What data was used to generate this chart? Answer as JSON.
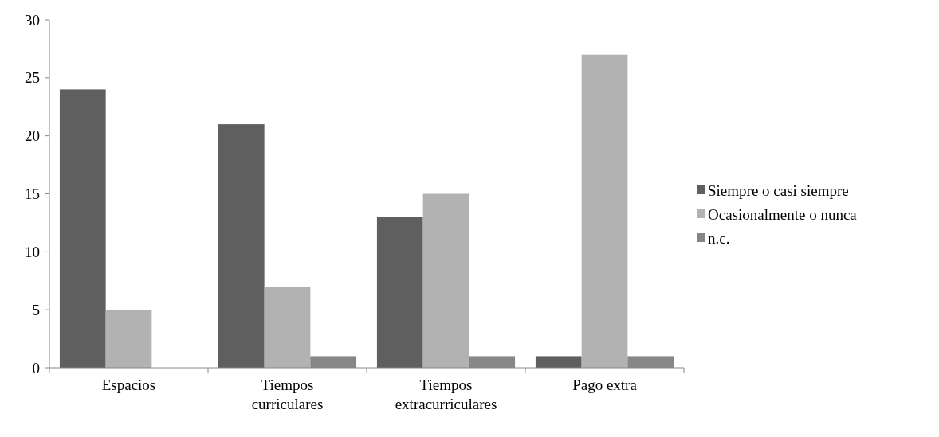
{
  "chart_data": {
    "type": "bar",
    "categories": [
      "Espacios",
      "Tiempos curriculares",
      "Tiempos extracurriculares",
      "Pago extra"
    ],
    "series": [
      {
        "name": "Siempre o casi siempre",
        "color": "#5f5f5f",
        "values": [
          24,
          21,
          13,
          1
        ]
      },
      {
        "name": "Ocasionalmente o nunca",
        "color": "#b2b2b2",
        "values": [
          5,
          7,
          15,
          27
        ]
      },
      {
        "name": "n.c.",
        "color": "#868686",
        "values": [
          0,
          1,
          1,
          1
        ]
      }
    ],
    "ylim": [
      0,
      30
    ],
    "yticks": [
      0,
      5,
      10,
      15,
      20,
      25,
      30
    ],
    "grid": false,
    "legend": "right"
  }
}
